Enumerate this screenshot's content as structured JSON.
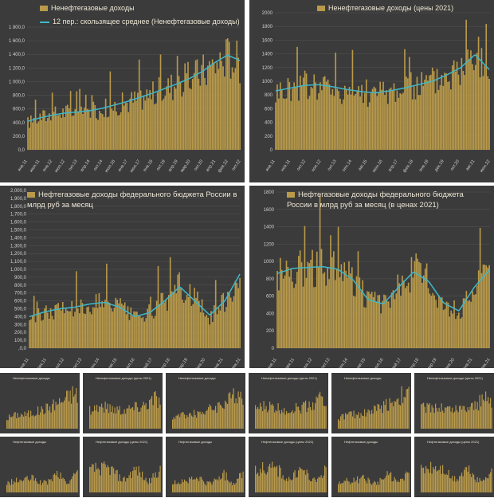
{
  "colors": {
    "bar": "#b99a4a",
    "line": "#3fb8c8",
    "bg": "#3b3b3b",
    "text": "#ece6d6",
    "tick": "#cfcfcf"
  },
  "chart_data": [
    {
      "type": "bar",
      "title": "Ненефтегазовые доходы",
      "legend": [
        "Ненефтегазовые доходы",
        "12 пер.: скользящее среднее (Ненефтегазовые доходы)"
      ],
      "y_ticks": [
        "1 800,0",
        "1 600,0",
        "1 400,0",
        "1 200,0",
        "1 000,0",
        "800,0",
        "600,0",
        "400,0",
        "200,0",
        "0,0"
      ],
      "ylim": [
        0,
        1800
      ],
      "x_ticks": [
        "янв.11",
        "июл.11",
        "янв.12",
        "июл.12",
        "окт.13",
        "апр.14",
        "окт.14",
        "июл.16",
        "янв.17",
        "июл.17",
        "янв.18",
        "окт.19",
        "апр.19",
        "мар.20",
        "окт.20",
        "апр.21",
        "фев.22",
        "окт.22"
      ],
      "series_trend": [
        400,
        480,
        520,
        560,
        540,
        560,
        600,
        650,
        700,
        760,
        820,
        900,
        980,
        1050,
        1150,
        1250,
        1380,
        1300
      ],
      "avg_trend": [
        420,
        470,
        510,
        540,
        555,
        575,
        610,
        660,
        710,
        770,
        830,
        900,
        970,
        1050,
        1150,
        1280,
        1390,
        1310
      ]
    },
    {
      "type": "bar",
      "title": "Ненефтегазовые доходы (цены 2021)",
      "legend": [
        "Ненефтегазовые доходы (цены 2021)"
      ],
      "y_ticks": [
        "2000",
        "1800",
        "1600",
        "1400",
        "1200",
        "1000",
        "800",
        "600",
        "400",
        "200",
        "0"
      ],
      "ylim": [
        0,
        2000
      ],
      "x_ticks": [
        "янв.11",
        "ноя.11",
        "окт.12",
        "ноя.12",
        "окт.13",
        "сен.14",
        "авг.15",
        "июн.16",
        "апр.17",
        "фев.18",
        "янв.19",
        "дек.19",
        "окт.20",
        "авг.21",
        "июн.22"
      ],
      "series_trend": [
        850,
        900,
        950,
        950,
        900,
        880,
        850,
        820,
        860,
        900,
        950,
        1000,
        1100,
        1200,
        1380,
        1150
      ],
      "avg_trend": [
        860,
        900,
        940,
        950,
        920,
        880,
        850,
        830,
        860,
        900,
        950,
        1000,
        1090,
        1200,
        1390,
        1170
      ]
    },
    {
      "type": "bar",
      "title": "Нефтегазовые доходы федерального бюджета России в млрд руб за месяц",
      "legend": [
        "Нефтегазовые доходы федерального бюджета России в млрд руб за месяц"
      ],
      "y_ticks": [
        "2,000,0",
        "1,900,0",
        "1,800,0",
        "1,700,0",
        "1,600,0",
        "1,500,0",
        "1,400,0",
        "1,300,0",
        "1,200,0",
        "1,100,0",
        "1,000,0",
        "900,0",
        "800,0",
        "700,0",
        "600,0",
        "500,0",
        "400,0",
        "300,0",
        "200,0",
        "100,0",
        ",0,0"
      ],
      "ylim": [
        0,
        2000
      ],
      "x_ticks": [
        "янв.11",
        "дек.11",
        "ноя.12",
        "окт.13",
        "сен.14",
        "авг.15",
        "июл.16",
        "май.17",
        "апр.18",
        "мар.19",
        "фев.20",
        "янв.21",
        "дек.21"
      ],
      "series_trend": [
        380,
        450,
        500,
        520,
        560,
        600,
        520,
        380,
        450,
        600,
        800,
        620,
        380,
        600,
        920
      ],
      "avg_trend": [
        400,
        460,
        500,
        520,
        560,
        580,
        520,
        400,
        450,
        600,
        780,
        600,
        420,
        600,
        940
      ]
    },
    {
      "type": "bar",
      "title": "Нефтегазовые доходы федерального бюджета России в млрд руб за месяц (в ценах 2021)",
      "legend": [
        "Нефтегазовые доходы федерального бюджета России в млрд руб за месяц (в ценах 2021)"
      ],
      "y_ticks": [
        "1800",
        "1600",
        "1400",
        "1200",
        "1000",
        "800",
        "600",
        "400",
        "200",
        "0"
      ],
      "ylim": [
        0,
        1800
      ],
      "x_ticks": [
        "янв.11",
        "дек.11",
        "ноя.12",
        "окт.13",
        "сен.14",
        "авг.15",
        "июл.16",
        "май.17",
        "апр.18",
        "мар.19",
        "фев.20",
        "янв.21",
        "дек.21"
      ],
      "series_trend": [
        850,
        920,
        930,
        940,
        920,
        800,
        550,
        500,
        700,
        900,
        780,
        500,
        420,
        700,
        880
      ],
      "avg_trend": [
        860,
        920,
        930,
        940,
        910,
        790,
        560,
        510,
        700,
        880,
        770,
        520,
        430,
        700,
        900
      ]
    }
  ],
  "thumbnails": {
    "titles": [
      "Ненефтегазовые доходы",
      "Ненефтегазовые доходы (цены 2021)",
      "Нефтегазовые доходы",
      "Нефтегазовые доходы (цены 2021)"
    ]
  }
}
